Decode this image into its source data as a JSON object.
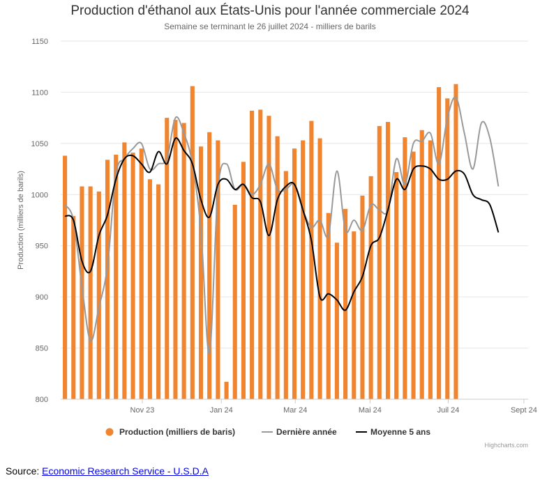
{
  "chart_data": {
    "type": "bar",
    "title": "Production d'éthanol aux États-Unis pour l'année commerciale 2024",
    "subtitle": "Semaine se terminant le 26 juillet 2024 - milliers de barils",
    "ylabel": "Production (milliers de barils)",
    "ylim": [
      800,
      1150
    ],
    "yticks": [
      800,
      850,
      900,
      950,
      1000,
      1050,
      1100,
      1150
    ],
    "xlim": [
      0,
      55
    ],
    "xticks": [
      {
        "label": "Nov 23",
        "at": 9.6
      },
      {
        "label": "Jan 24",
        "at": 18.9
      },
      {
        "label": "Mar 24",
        "at": 27.6
      },
      {
        "label": "Mai 24",
        "at": 36.4
      },
      {
        "label": "Juil 24",
        "at": 45.6
      },
      {
        "label": "Sept 24",
        "at": 54.5
      }
    ],
    "series": [
      {
        "name": "Production (milliers de baris)",
        "type": "bar",
        "color": "#f0842f",
        "values": [
          1038,
          979,
          1008,
          1008,
          1003,
          1034,
          1039,
          1051,
          1041,
          1045,
          1015,
          1010,
          1075,
          1073,
          1070,
          1106,
          1047,
          1061,
          1053,
          817,
          990,
          1032,
          1082,
          1083,
          1077,
          1057,
          1023,
          1045,
          1053,
          1072,
          1055,
          982,
          953,
          986,
          964,
          999,
          1018,
          1067,
          1071,
          1022,
          1056,
          1042,
          1063,
          1053,
          1105,
          1094,
          1108
        ]
      },
      {
        "name": "Dernière année",
        "type": "line",
        "color": "#999999",
        "values": [
          990,
          975,
          910,
          857,
          890,
          930,
          1020,
          1035,
          1045,
          1050,
          1025,
          1030,
          1035,
          1075,
          1060,
          1030,
          965,
          845,
          1005,
          1030,
          1005,
          1010,
          1000,
          1010,
          1030,
          1005,
          1005,
          1010,
          985,
          968,
          975,
          960,
          1023,
          965,
          975,
          965,
          990,
          985,
          985,
          1035,
          1010,
          1050,
          1052,
          1060,
          1030,
          1075,
          1095,
          1060,
          1025,
          1070,
          1055,
          1008
        ]
      },
      {
        "name": "Moyenne 5 ans",
        "type": "line",
        "color": "#000000",
        "values": [
          979,
          975,
          935,
          925,
          960,
          980,
          1015,
          1035,
          1038,
          1030,
          1022,
          1042,
          1030,
          1055,
          1043,
          1030,
          995,
          978,
          1010,
          1015,
          1005,
          1010,
          997,
          993,
          960,
          995,
          1008,
          1010,
          985,
          955,
          900,
          903,
          897,
          887,
          905,
          920,
          950,
          958,
          985,
          1015,
          1005,
          1025,
          1028,
          1025,
          1015,
          1015,
          1023,
          1020,
          1000,
          995,
          990,
          963
        ]
      }
    ],
    "legend": [
      "Production (milliers de baris)",
      "Dernière année",
      "Moyenne 5 ans"
    ],
    "credits": "Highcharts.com"
  },
  "source": {
    "prefix": "Source: ",
    "link_text": "Economic Research Service - U.S.D.A"
  }
}
